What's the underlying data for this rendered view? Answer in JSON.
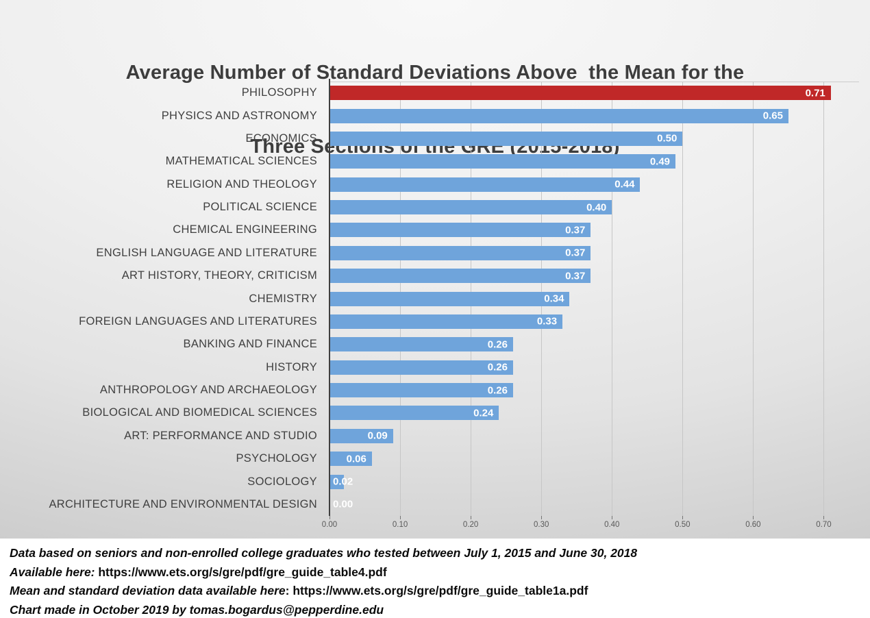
{
  "chart": {
    "title_line1": "Average Number of Standard Deviations Above  the Mean for the",
    "title_line2": "Three Sections of the GRE (2015-2018)"
  },
  "chart_data": {
    "type": "bar",
    "orientation": "horizontal",
    "title": "Average Number of Standard Deviations Above the Mean for the Three Sections of the GRE (2015-2018)",
    "categories": [
      "PHILOSOPHY",
      "PHYSICS AND ASTRONOMY",
      "ECONOMICS",
      "MATHEMATICAL SCIENCES",
      "RELIGION AND THEOLOGY",
      "POLITICAL SCIENCE",
      "CHEMICAL ENGINEERING",
      "ENGLISH LANGUAGE AND LITERATURE",
      "ART HISTORY, THEORY, CRITICISM",
      "CHEMISTRY",
      "FOREIGN LANGUAGES AND LITERATURES",
      "BANKING AND FINANCE",
      "HISTORY",
      "ANTHROPOLOGY AND ARCHAEOLOGY",
      "BIOLOGICAL AND BIOMEDICAL SCIENCES",
      "ART: PERFORMANCE AND STUDIO",
      "PSYCHOLOGY",
      "SOCIOLOGY",
      "ARCHITECTURE AND ENVIRONMENTAL DESIGN"
    ],
    "values": [
      0.71,
      0.65,
      0.5,
      0.49,
      0.44,
      0.4,
      0.37,
      0.37,
      0.37,
      0.34,
      0.33,
      0.26,
      0.26,
      0.26,
      0.24,
      0.09,
      0.06,
      0.02,
      0.0
    ],
    "value_labels": [
      "0.71",
      "0.65",
      "0.50",
      "0.49",
      "0.44",
      "0.40",
      "0.37",
      "0.37",
      "0.37",
      "0.34",
      "0.33",
      "0.26",
      "0.26",
      "0.26",
      "0.24",
      "0.09",
      "0.06",
      "0.02",
      "0.00"
    ],
    "xlim": [
      0,
      0.75
    ],
    "x_ticks": [
      "0.00",
      "0.10",
      "0.20",
      "0.30",
      "0.40",
      "0.50",
      "0.60",
      "0.70"
    ],
    "grid": "vertical-gridlines-on",
    "legend": "none",
    "data_label_position": "inside-end",
    "data_label_color": "#FFFFFF",
    "bar_color_default": "#6FA4DB",
    "bar_color_highlight": "#C02828",
    "highlight_index": 0
  },
  "footer": {
    "lines": [
      {
        "italic": "Data based on seniors and non-enrolled college graduates who tested between July 1, 2015 and June 30, 2018",
        "normal": ""
      },
      {
        "italic": "Available here:",
        "normal": " https://www.ets.org/s/gre/pdf/gre_guide_table4.pdf"
      },
      {
        "italic": "Mean and standard deviation data available here",
        "normal": ": https://www.ets.org/s/gre/pdf/gre_guide_table1a.pdf"
      },
      {
        "italic": "Chart made in October 2019 by tomas.bogardus@pepperdine.edu",
        "normal": ""
      }
    ]
  },
  "colors": {
    "slide_background_top": "#F8F8F8",
    "slide_background_bottom": "#C2C2C2",
    "notes_background": "#FFFFFF",
    "title_text": "#3D3D3D",
    "category_text": "#404040",
    "tick_text": "#595959",
    "gridline": "#C6C6C6",
    "axis_line": "#3F3F3F"
  }
}
